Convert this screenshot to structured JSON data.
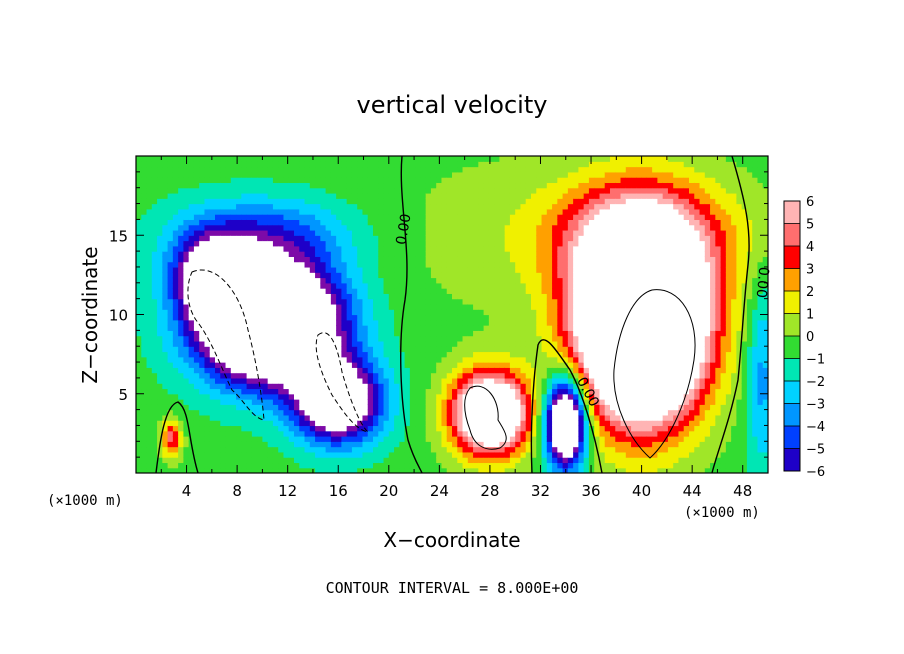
{
  "chart_data": {
    "type": "heatmap",
    "title": "vertical velocity",
    "xlabel": "X−coordinate",
    "ylabel": "Z−coordinate",
    "x_unit_left": "(×1000 m)",
    "x_unit_right": "(×1000 m)",
    "xlim": [
      0,
      50
    ],
    "ylim": [
      0,
      20
    ],
    "x_ticks": [
      4,
      8,
      12,
      16,
      20,
      24,
      28,
      32,
      36,
      40,
      44,
      48
    ],
    "x_tick_labels": [
      "4",
      "8",
      "12",
      "16",
      "20",
      "24",
      "28",
      "32",
      "36",
      "40",
      "44",
      "48"
    ],
    "y_ticks": [
      5,
      10,
      15
    ],
    "y_tick_labels": [
      "5",
      "10",
      "15"
    ],
    "colorbar": {
      "min": -6,
      "max": 6,
      "tick_values": [
        6,
        5,
        4,
        3,
        2,
        1,
        0,
        -1,
        -2,
        -3,
        -4,
        -5,
        -6
      ],
      "tick_labels": [
        "6",
        "5",
        "4",
        "3",
        "2",
        "1",
        "0",
        "−1",
        "−2",
        "−3",
        "−4",
        "−5",
        "−6"
      ]
    },
    "contour_labels": [
      "0.00",
      "0.00",
      "0.00"
    ],
    "footer": "CONTOUR INTERVAL = 8.000E+00",
    "features": [
      {
        "kind": "downdraft",
        "cx": 11,
        "cz": 9,
        "peak": -16
      },
      {
        "kind": "updraft",
        "cx": 40,
        "cz": 9,
        "peak": 20
      },
      {
        "kind": "updraft",
        "cx": 28,
        "cz": 3.5,
        "peak": 12
      },
      {
        "kind": "downdraft",
        "cx": 34,
        "cz": 3,
        "peak": -12
      }
    ]
  },
  "colors": {
    "scale": [
      "#7d0aa8",
      "#1e00c8",
      "#0040ff",
      "#0096ff",
      "#00d2ff",
      "#00e6b4",
      "#32dc32",
      "#a0e628",
      "#f0f000",
      "#ffa000",
      "#ff0000",
      "#ff6e6e",
      "#ffb4b4"
    ]
  }
}
